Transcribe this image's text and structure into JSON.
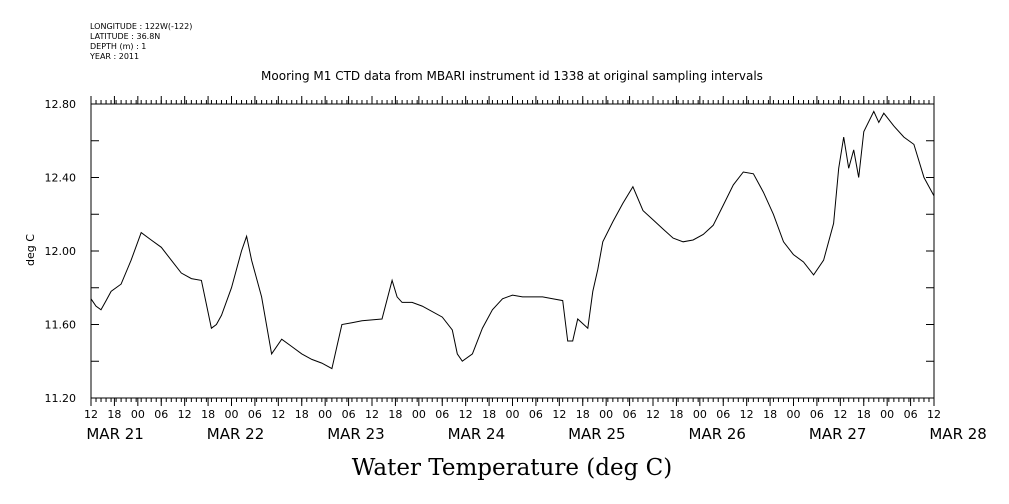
{
  "header": {
    "lines": [
      "LONGITUDE : 122W(-122)",
      "LATITUDE : 36.8N",
      "DEPTH (m) : 1",
      "YEAR : 2011"
    ]
  },
  "chart_data": {
    "type": "line",
    "title": "Mooring M1 CTD data from MBARI instrument id 1338 at original sampling intervals",
    "xlabel": "Water Temperature (deg C)",
    "ylabel": "deg C",
    "ylim": [
      11.2,
      12.8
    ],
    "yticks": [
      "11.20",
      "11.60",
      "12.00",
      "12.40",
      "12.80"
    ],
    "xlim": [
      "2011-03-21 12:00",
      "2011-03-28 12:00"
    ],
    "hour_ticks": [
      "12",
      "18",
      "00",
      "06",
      "12",
      "18",
      "00",
      "06",
      "12",
      "18",
      "00",
      "06",
      "12",
      "18",
      "00",
      "06",
      "12",
      "18",
      "00",
      "06",
      "12",
      "18",
      "00",
      "06",
      "12",
      "18",
      "00",
      "06",
      "12",
      "18",
      "00",
      "06",
      "12",
      "18",
      "00",
      "06",
      "12"
    ],
    "day_labels": [
      "MAR 21",
      "MAR 22",
      "MAR 23",
      "MAR 24",
      "MAR 25",
      "MAR 26",
      "MAR 27",
      "MAR 28"
    ],
    "grid": false,
    "series": [
      {
        "x": [
          "2011-03-21 12:00",
          "2011-03-21 13:00",
          "2011-03-21 14:00",
          "2011-03-21 15:00",
          "2011-03-21 16:00",
          "2011-03-21 18:00",
          "2011-03-21 20:00",
          "2011-03-21 22:00",
          "2011-03-22 00:00",
          "2011-03-22 02:00",
          "2011-03-22 04:00",
          "2011-03-22 06:00",
          "2011-03-22 08:00",
          "2011-03-22 10:00",
          "2011-03-22 12:00",
          "2011-03-22 13:00",
          "2011-03-22 14:00",
          "2011-03-22 16:00",
          "2011-03-22 18:00",
          "2011-03-22 19:00",
          "2011-03-22 20:00",
          "2011-03-22 22:00",
          "2011-03-23 00:00",
          "2011-03-23 02:00",
          "2011-03-23 04:00",
          "2011-03-23 06:00",
          "2011-03-23 08:00",
          "2011-03-23 10:00",
          "2011-03-23 12:00",
          "2011-03-23 13:00",
          "2011-03-23 14:00",
          "2011-03-23 16:00",
          "2011-03-23 18:00",
          "2011-03-23 22:00",
          "2011-03-24 00:00",
          "2011-03-24 01:00",
          "2011-03-24 02:00",
          "2011-03-24 04:00",
          "2011-03-24 06:00",
          "2011-03-24 10:00",
          "2011-03-24 12:00",
          "2011-03-24 13:00",
          "2011-03-24 14:00",
          "2011-03-24 16:00",
          "2011-03-24 18:00",
          "2011-03-24 20:00",
          "2011-03-24 22:00",
          "2011-03-25 00:00",
          "2011-03-25 02:00",
          "2011-03-25 04:00",
          "2011-03-25 06:00",
          "2011-03-25 08:00",
          "2011-03-25 10:00",
          "2011-03-25 11:00",
          "2011-03-25 12:00",
          "2011-03-25 13:00",
          "2011-03-25 15:00",
          "2011-03-25 16:00",
          "2011-03-25 17:00",
          "2011-03-25 18:00",
          "2011-03-25 20:00",
          "2011-03-25 22:00",
          "2011-03-26 00:00",
          "2011-03-26 02:00",
          "2011-03-26 04:00",
          "2011-03-26 06:00",
          "2011-03-26 08:00",
          "2011-03-26 10:00",
          "2011-03-26 12:00",
          "2011-03-26 14:00",
          "2011-03-26 16:00",
          "2011-03-26 18:00",
          "2011-03-26 20:00",
          "2011-03-26 22:00",
          "2011-03-27 00:00",
          "2011-03-27 02:00",
          "2011-03-27 04:00",
          "2011-03-27 06:00",
          "2011-03-27 08:00",
          "2011-03-27 10:00",
          "2011-03-27 12:00",
          "2011-03-27 14:00",
          "2011-03-27 16:00",
          "2011-03-27 17:00",
          "2011-03-27 18:00",
          "2011-03-27 19:00",
          "2011-03-27 20:00",
          "2011-03-27 21:00",
          "2011-03-27 22:00",
          "2011-03-28 00:00",
          "2011-03-28 01:00",
          "2011-03-28 02:00",
          "2011-03-28 04:00",
          "2011-03-28 06:00",
          "2011-03-28 08:00",
          "2011-03-28 10:00",
          "2011-03-28 11:00",
          "2011-03-28 12:00"
        ],
        "values": [
          11.74,
          11.7,
          11.68,
          11.73,
          11.78,
          11.82,
          11.95,
          12.1,
          12.06,
          12.02,
          11.95,
          11.88,
          11.85,
          11.84,
          11.58,
          11.6,
          11.65,
          11.8,
          12.0,
          12.08,
          11.95,
          11.75,
          11.44,
          11.52,
          11.48,
          11.44,
          11.41,
          11.39,
          11.36,
          11.48,
          11.6,
          11.61,
          11.62,
          11.63,
          11.84,
          11.75,
          11.72,
          11.72,
          11.7,
          11.64,
          11.57,
          11.44,
          11.4,
          11.44,
          11.58,
          11.68,
          11.74,
          11.76,
          11.75,
          11.75,
          11.75,
          11.74,
          11.73,
          11.51,
          11.51,
          11.63,
          11.58,
          11.78,
          11.9,
          12.05,
          12.16,
          12.26,
          12.35,
          12.22,
          12.17,
          12.12,
          12.07,
          12.05,
          12.06,
          12.09,
          12.14,
          12.25,
          12.36,
          12.43,
          12.42,
          12.32,
          12.2,
          12.05,
          11.98,
          11.94,
          11.87,
          11.95,
          12.15,
          12.45,
          12.62,
          12.45,
          12.55,
          12.4,
          12.65,
          12.76,
          12.7,
          12.75,
          12.68,
          12.62,
          12.58,
          12.4,
          12.35,
          12.3
        ]
      }
    ]
  }
}
